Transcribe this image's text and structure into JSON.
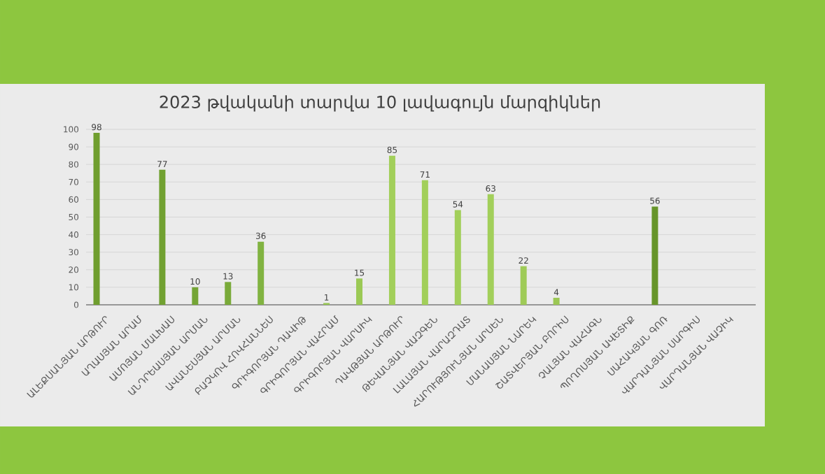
{
  "chart_data": {
    "type": "bar",
    "title": "2023 թվականի տարվա 10 լավագույն մարզիկներ",
    "categories": [
      "ԱԼԵՔՍԱՆՅԱՆ ԱՐԹՈՒՐ",
      "ԱՂԱՍՅԱՆ ԱՐԱՄ",
      "ԱՄՈՅԱՆ ՄԱԼԽԱՍ",
      "ԱՆԴՐԵԱՍՅԱՆ ԱՐՄԱՆ",
      "ԱՎԱՆԵՍՅԱՆ ԱՐՄԱՆ",
      "ԲԱՉԿՈՎ ՀՈՎՀԱՆՆԵՍ",
      "ԳՐԻԳՈՐՅԱՆ ԴԱՎԻԹ",
      "ԳՐԻԳՈՐՅԱՆ ՎԱՀՐԱՄ",
      "ԳՐԻԳՈՐՅԱՆ ՎԱՐՍԻԿ",
      "ԴԱՎԹՅԱՆ ԱՐԹՈՒՐ",
      "ԹԵՎԱՆՅԱՆ ՎԱԶԳԵՆ",
      "ԼԱԼԱՅԱՆ ՎԱՐԱԶԴԱՏ",
      "ՀԱՐՈՒԹՅՈՒՆՅԱՆ ԱՐՍԵՆ",
      "ՄԱՆԱՍՅԱՆ ՆԱՐԵԿ",
      "ՇԱՏՎԵՐՅԱՆ ԲՈՐԻՍ",
      "ՉԱԼՅԱՆ ՎԱՀԱԳՆ",
      "ՊՈՂՈՍՅԱՆ ԱՎԵՏԻՔ",
      "ՍԱՀԱԿՅԱՆ ԳՈՌ",
      "ՎԱՐԴԱՆՅԱՆ ՍԱՐԳԻՍ",
      "ՎԱՐԴԱՆՅԱՆ ՎԱՉԻԿ"
    ],
    "values": [
      98,
      null,
      77,
      10,
      13,
      36,
      null,
      1,
      15,
      85,
      71,
      54,
      63,
      22,
      4,
      null,
      null,
      56,
      null,
      null
    ],
    "colors": [
      "#6f9e2e",
      null,
      "#71a131",
      "#74a535",
      "#79aa39",
      "#81b341",
      null,
      "#95c451",
      "#9bc955",
      "#a2cf5a",
      "#a2cf5a",
      "#a2cf5a",
      "#a2cf5a",
      "#9fcb57",
      "#9bc753",
      null,
      null,
      "#67952a",
      null,
      null
    ],
    "ylim": [
      0,
      100
    ],
    "yticks": [
      0,
      10,
      20,
      30,
      40,
      50,
      60,
      70,
      80,
      90,
      100
    ],
    "grid": "y",
    "data_labels": true
  }
}
